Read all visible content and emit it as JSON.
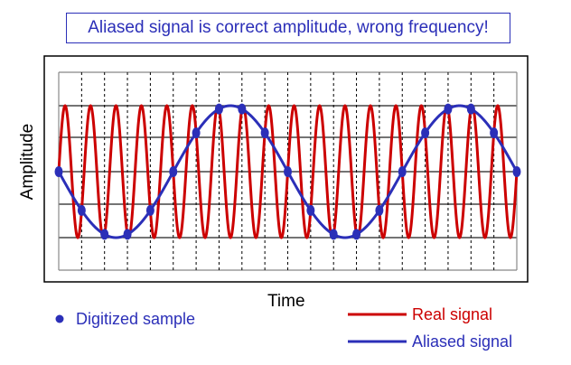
{
  "title": "Aliased signal is correct amplitude, wrong frequency!",
  "axes": {
    "ylabel": "Amplitude",
    "xlabel": "Time"
  },
  "legend": {
    "sample": "Digitized sample",
    "real": "Real signal",
    "aliased": "Aliased signal"
  },
  "colors": {
    "real": "#cc0000",
    "aliased": "#2b2fb8",
    "sample": "#2b2fb8",
    "title": "#2b2fb8"
  },
  "chart_data": {
    "type": "line",
    "sample_count": 21,
    "real_signal": {
      "cycles_per_sample": 0.9,
      "amplitude": 1
    },
    "aliased_signal": {
      "cycles_per_sample": 0.1,
      "amplitude": 1,
      "phase": "inverted"
    },
    "samples": "real signal sampled at each dashed gridline"
  }
}
